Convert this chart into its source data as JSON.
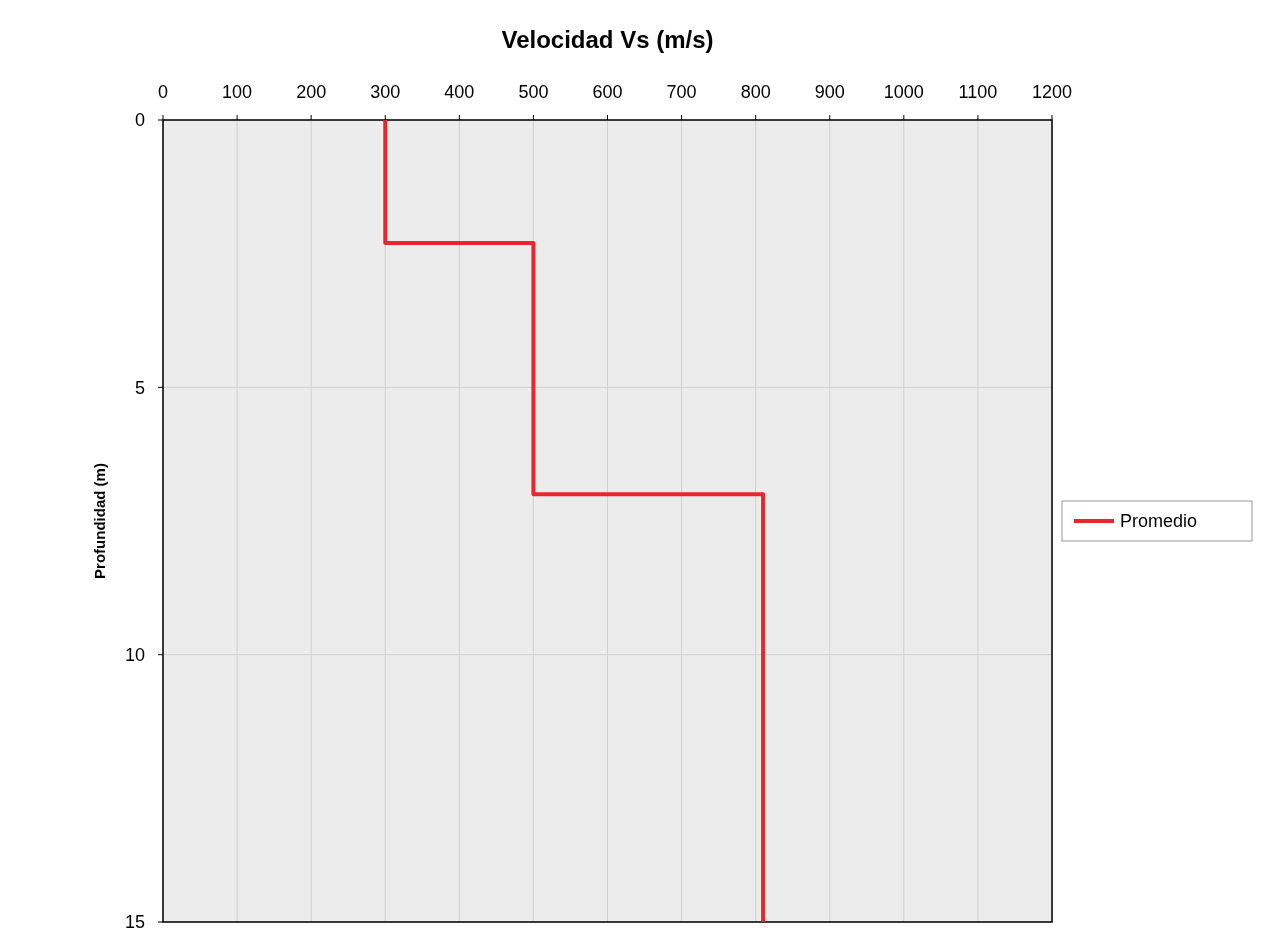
{
  "chart_data": {
    "type": "line",
    "xlabel": "Velocidad Vs (m/s)",
    "ylabel": "Profundidad (m)",
    "xlim": [
      0,
      1200
    ],
    "xticks": [
      0,
      100,
      200,
      300,
      400,
      500,
      600,
      700,
      800,
      900,
      1000,
      1100,
      1200
    ],
    "ylim": [
      15,
      0
    ],
    "yticks": [
      0,
      5,
      10,
      15
    ],
    "grid": true,
    "legend": "right",
    "marker": "none",
    "line_style": "solid",
    "series": [
      {
        "name": "Promedio",
        "color": "#e8262c",
        "x": [
          300,
          300,
          500,
          500,
          810,
          810
        ],
        "values": [
          0,
          2.3,
          2.3,
          7,
          7,
          15
        ]
      }
    ]
  }
}
